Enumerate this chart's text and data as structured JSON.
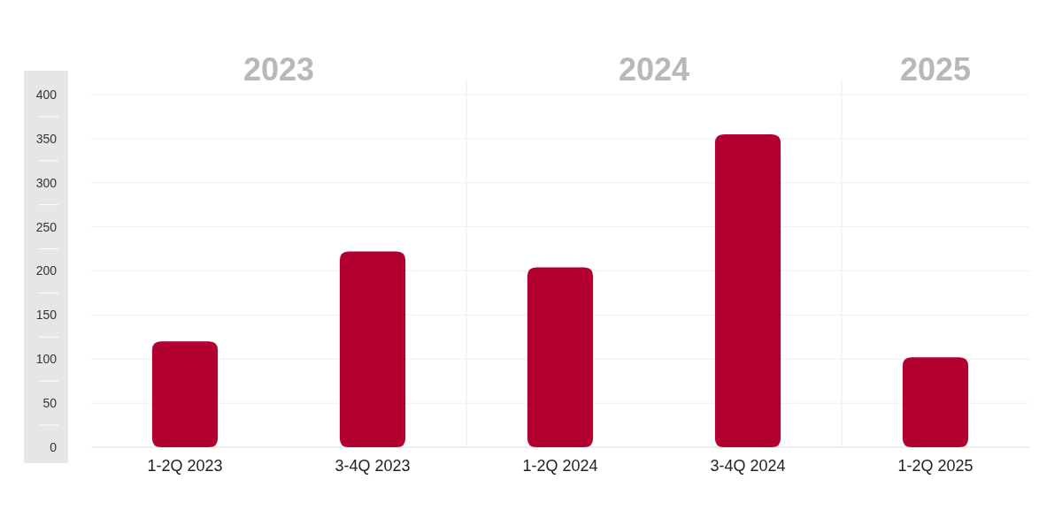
{
  "chart_data": {
    "type": "bar",
    "categories": [
      "1-2Q 2023",
      "3-4Q 2023",
      "1-2Q 2024",
      "3-4Q 2024",
      "1-2Q 2025"
    ],
    "values": [
      120,
      222,
      204,
      355,
      102
    ],
    "color": "#b20030",
    "ylim": [
      0,
      400
    ],
    "yticks": [
      0,
      50,
      100,
      150,
      200,
      250,
      300,
      350,
      400
    ],
    "grid": "y",
    "annotations": [
      "2023",
      "2024",
      "2025"
    ]
  }
}
